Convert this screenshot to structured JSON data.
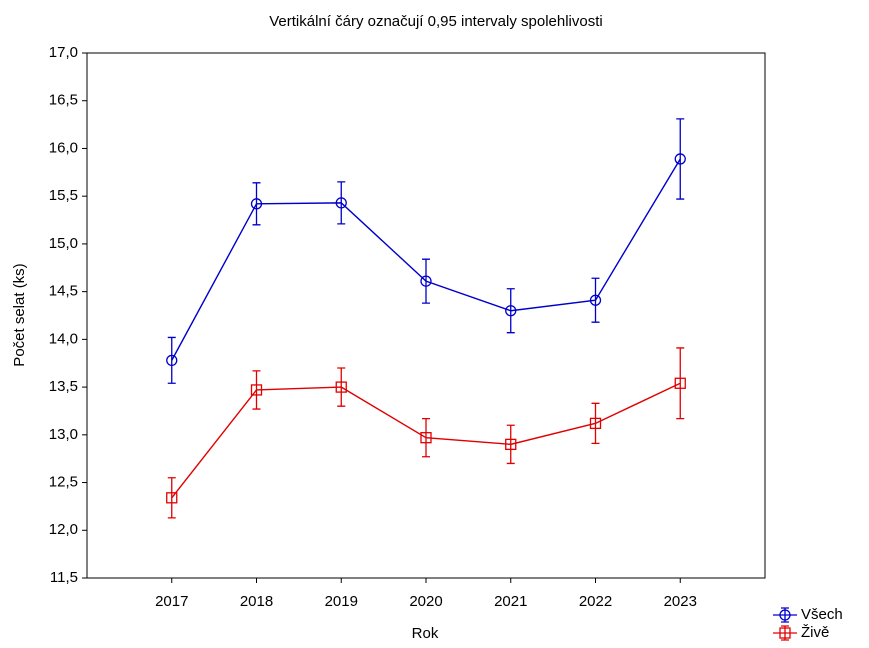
{
  "chart_data": {
    "type": "line",
    "title": "Vertikální čáry označují 0,95 intervaly spolehlivosti",
    "x_label": "Rok",
    "y_label": "Počet selat (ks)",
    "categories": [
      "2017",
      "2018",
      "2019",
      "2020",
      "2021",
      "2022",
      "2023"
    ],
    "series": [
      {
        "name": "Všech",
        "color": "#0000cc",
        "marker": "circle",
        "values": [
          13.78,
          15.42,
          15.43,
          14.61,
          14.3,
          14.41,
          15.89
        ],
        "errors": [
          0.24,
          0.22,
          0.22,
          0.23,
          0.23,
          0.23,
          0.42
        ]
      },
      {
        "name": "Živě",
        "color": "#e00000",
        "marker": "square",
        "values": [
          12.34,
          13.47,
          13.5,
          12.97,
          12.9,
          13.12,
          13.54
        ],
        "errors": [
          0.21,
          0.2,
          0.2,
          0.2,
          0.2,
          0.21,
          0.37
        ]
      }
    ],
    "ylim": [
      11.5,
      17
    ],
    "yticks": [
      {
        "value": 11.5,
        "label": "11,5"
      },
      {
        "value": 12,
        "label": "12,0"
      },
      {
        "value": 12.5,
        "label": "12,5"
      },
      {
        "value": 13,
        "label": "13,0"
      },
      {
        "value": 13.5,
        "label": "13,5"
      },
      {
        "value": 14,
        "label": "14,0"
      },
      {
        "value": 14.5,
        "label": "14,5"
      },
      {
        "value": 15,
        "label": "15,0"
      },
      {
        "value": 15.5,
        "label": "15,5"
      },
      {
        "value": 16,
        "label": "16,0"
      },
      {
        "value": 16.5,
        "label": "16,5"
      },
      {
        "value": 17,
        "label": "17,0"
      }
    ],
    "grid": false,
    "legend": "bottom-right"
  }
}
